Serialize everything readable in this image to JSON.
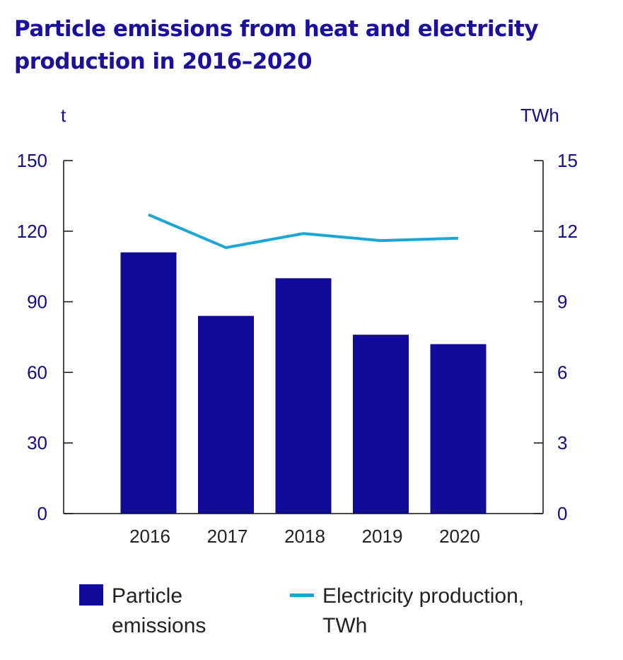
{
  "title": "Particle emissions from heat and electricity production in 2016–2020",
  "colors": {
    "bar": "#120a99",
    "line": "#1aa6d6",
    "axis_text": "#140a8e",
    "tick_text": "#222222",
    "title": "#1a0f9e"
  },
  "chart_data": {
    "type": "bar",
    "title": "Particle emissions from heat and electricity production in 2016–2020",
    "categories": [
      "2016",
      "2017",
      "2018",
      "2019",
      "2020"
    ],
    "left_axis": {
      "unit": "t",
      "ylim": [
        0,
        150
      ],
      "ticks": [
        "0",
        "30",
        "60",
        "90",
        "120",
        "150"
      ]
    },
    "right_axis": {
      "unit": "TWh",
      "ylim": [
        0,
        15
      ],
      "ticks": [
        "0",
        "3",
        "6",
        "9",
        "12",
        "15"
      ]
    },
    "series": [
      {
        "name": "Particle\nemissions",
        "type": "bar",
        "axis": "left",
        "values": [
          111,
          84,
          100,
          76,
          72
        ]
      },
      {
        "name": "Electricity production,\nTWh",
        "type": "line",
        "axis": "right",
        "values": [
          12.7,
          11.3,
          11.9,
          11.6,
          11.7
        ]
      }
    ],
    "grid": false,
    "legend_position": "bottom"
  }
}
